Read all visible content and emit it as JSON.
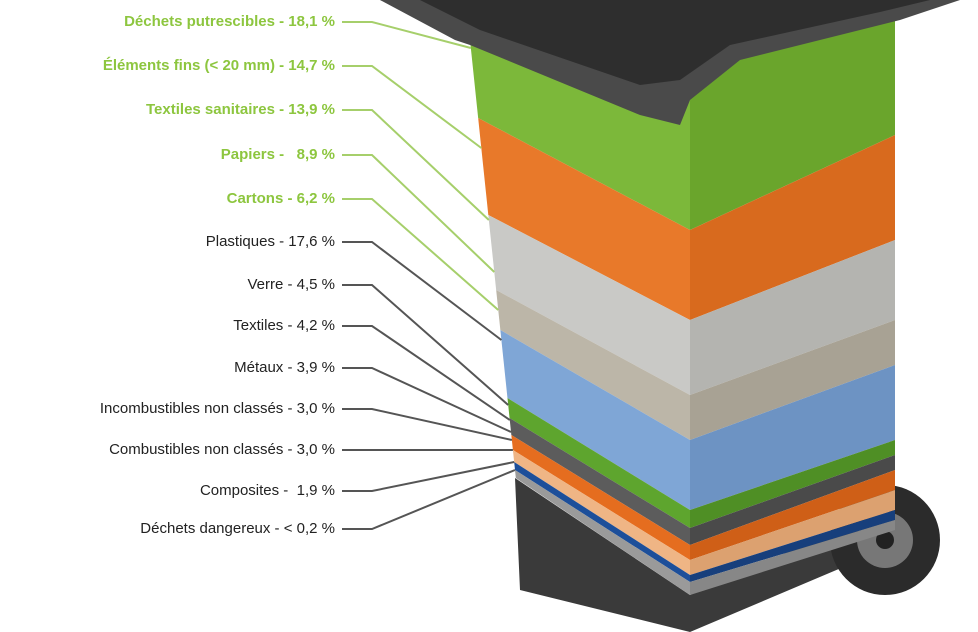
{
  "labels": [
    {
      "text": "Déchets putrescibles - 18,1 %",
      "color": "#8dc63f"
    },
    {
      "text": "Éléments fins (< 20 mm) - 14,7 %",
      "color": "#8dc63f"
    },
    {
      "text": "Textiles sanitaires - 13,9 %",
      "color": "#8dc63f"
    },
    {
      "text": "Papiers -   8,9 %",
      "color": "#8dc63f"
    },
    {
      "text": "Cartons - 6,2 %",
      "color": "#8dc63f"
    },
    {
      "text": "Plastiques - 17,6 %",
      "color": "#222222"
    },
    {
      "text": "Verre - 4,5 %",
      "color": "#222222"
    },
    {
      "text": "Textiles - 4,2 %",
      "color": "#222222"
    },
    {
      "text": "Métaux - 3,9 %",
      "color": "#222222"
    },
    {
      "text": "Incombustibles non classés - 3,0 %",
      "color": "#222222"
    },
    {
      "text": "Combustibles non classés - 3,0 %",
      "color": "#222222"
    },
    {
      "text": "Composites -  1,9 %",
      "color": "#222222"
    },
    {
      "text": "Déchets dangereux - < 0,2 %",
      "color": "#222222"
    }
  ]
}
